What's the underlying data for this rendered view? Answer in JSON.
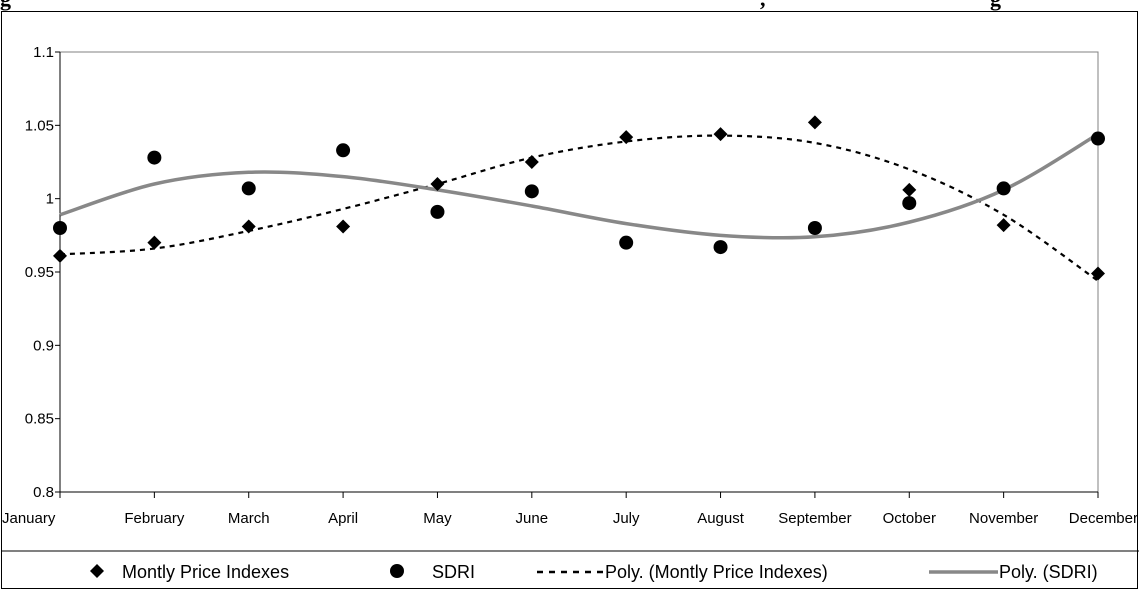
{
  "chart_data": {
    "type": "scatter",
    "title_fragment": "g",
    "title_fragment_2": ", ",
    "title_fragment_3": "g",
    "categories": [
      "January",
      "February",
      "March",
      "April",
      "May",
      "June",
      "July",
      "August",
      "September",
      "October",
      "November",
      "December"
    ],
    "ylim": [
      0.8,
      1.1
    ],
    "yticks": [
      "0.8",
      "0.85",
      "0.9",
      "0.95",
      "1",
      "1.05",
      "1.1"
    ],
    "series": [
      {
        "name": "Montly Price Indexes",
        "marker": "diamond",
        "values": [
          0.961,
          0.97,
          0.981,
          0.981,
          1.01,
          1.025,
          1.042,
          1.044,
          1.052,
          1.006,
          0.982,
          0.949
        ]
      },
      {
        "name": "SDRI",
        "marker": "circle",
        "values": [
          0.98,
          1.028,
          1.007,
          1.033,
          0.991,
          1.005,
          0.97,
          0.967,
          0.98,
          0.997,
          1.007,
          1.041
        ]
      }
    ],
    "trendlines": [
      {
        "name": "Poly. (Montly Price Indexes)",
        "style": "dashed",
        "color": "#000000",
        "values": [
          0.962,
          0.966,
          0.978,
          0.993,
          1.01,
          1.028,
          1.039,
          1.043,
          1.038,
          1.02,
          0.989,
          0.944
        ]
      },
      {
        "name": "Poly. (SDRI)",
        "style": "solid",
        "color": "#888888",
        "values": [
          0.989,
          1.01,
          1.018,
          1.015,
          1.006,
          0.995,
          0.983,
          0.975,
          0.974,
          0.984,
          1.006,
          1.044
        ]
      }
    ],
    "legend_position": "bottom",
    "grid": false
  }
}
